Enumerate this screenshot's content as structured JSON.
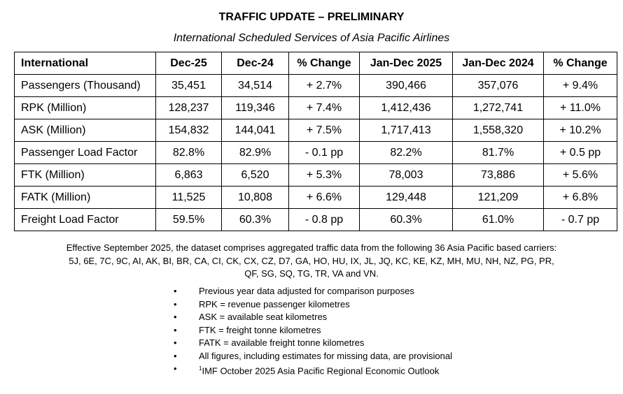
{
  "title": "TRAFFIC UPDATE – PRELIMINARY",
  "subtitle": "International Scheduled Services of Asia Pacific Airlines",
  "table": {
    "headers": [
      "International",
      "Dec-25",
      "Dec-24",
      "% Change",
      "Jan-Dec 2025",
      "Jan-Dec 2024",
      "% Change"
    ],
    "rows": [
      [
        "Passengers (Thousand)",
        "35,451",
        "34,514",
        "+ 2.7%",
        "390,466",
        "357,076",
        "+ 9.4%"
      ],
      [
        "RPK (Million)",
        "128,237",
        "119,346",
        "+ 7.4%",
        "1,412,436",
        "1,272,741",
        "+ 11.0%"
      ],
      [
        "ASK (Million)",
        "154,832",
        "144,041",
        "+ 7.5%",
        "1,717,413",
        "1,558,320",
        "+ 10.2%"
      ],
      [
        "Passenger Load Factor",
        "82.8%",
        "82.9%",
        "- 0.1 pp",
        "82.2%",
        "81.7%",
        "+ 0.5 pp"
      ],
      [
        "FTK (Million)",
        "6,863",
        "6,520",
        "+ 5.3%",
        "78,003",
        "73,886",
        "+ 5.6%"
      ],
      [
        "FATK (Million)",
        "11,525",
        "10,808",
        "+ 6.6%",
        "129,448",
        "121,209",
        "+ 6.8%"
      ],
      [
        "Freight Load Factor",
        "59.5%",
        "60.3%",
        "- 0.8 pp",
        "60.3%",
        "61.0%",
        "- 0.7 pp"
      ]
    ]
  },
  "note": {
    "line1": "Effective September 2025, the dataset comprises aggregated traffic data from the following 36 Asia Pacific based carriers:",
    "line2": "5J, 6E, 7C, 9C, AI, AK, BI, BR, CA, CI, CK, CX, CZ, D7, GA, HO, HU, IX, JL, JQ, KC, KE, KZ, MH, MU, NH, NZ, PG, PR,",
    "line3": "QF, SG, SQ, TG, TR, VA and VN."
  },
  "bullets": [
    "Previous year data adjusted for comparison purposes",
    "RPK = revenue passenger kilometres",
    "ASK = available seat kilometres",
    "FTK = freight tonne kilometres",
    "FATK = available freight tonne kilometres",
    "All figures, including estimates for missing data, are provisional"
  ],
  "footnote": {
    "mark": "1",
    "text": "IMF October 2025 Asia Pacific Regional Economic Outlook"
  },
  "bullet_char": "•"
}
